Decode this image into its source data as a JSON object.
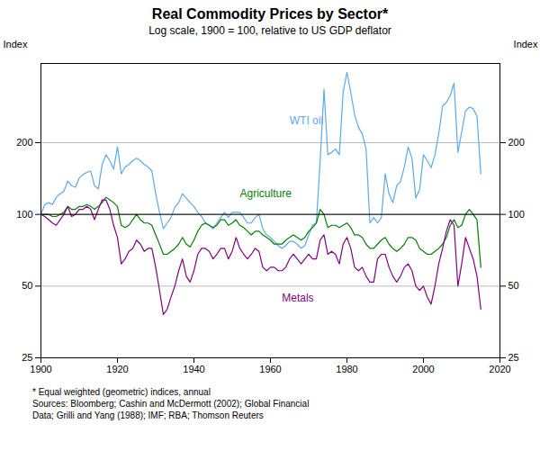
{
  "chart_data": {
    "type": "line",
    "title": "Real Commodity Prices by Sector*",
    "subtitle": "Log scale, 1900 = 100, relative to US GDP deflator",
    "ylabel": "Index",
    "y2label": "Index",
    "footnotes": [
      "*   Equal weighted (geometric) indices, annual",
      "Sources: Bloomberg; Cashin and McDermott (2002); Global Financial\nData; Grilli and Yang (1988); IMF; RBA; Thomson Reuters"
    ],
    "log": "y",
    "grid": true,
    "xlim": [
      1900,
      2020
    ],
    "xticks": [
      1900,
      1920,
      1940,
      1960,
      1980,
      2000,
      2020
    ],
    "ylim": [
      25,
      430
    ],
    "yticks": [
      25,
      50,
      100,
      200
    ],
    "y2lim": [
      25,
      430
    ],
    "y2ticks": [
      25,
      50,
      100,
      200
    ],
    "reference_line": 100,
    "x": [
      1900,
      1901,
      1902,
      1903,
      1904,
      1905,
      1906,
      1907,
      1908,
      1909,
      1910,
      1911,
      1912,
      1913,
      1914,
      1915,
      1916,
      1917,
      1918,
      1919,
      1920,
      1921,
      1922,
      1923,
      1924,
      1925,
      1926,
      1927,
      1928,
      1929,
      1930,
      1931,
      1932,
      1933,
      1934,
      1935,
      1936,
      1937,
      1938,
      1939,
      1940,
      1941,
      1942,
      1943,
      1944,
      1945,
      1946,
      1947,
      1948,
      1949,
      1950,
      1951,
      1952,
      1953,
      1954,
      1955,
      1956,
      1957,
      1958,
      1959,
      1960,
      1961,
      1962,
      1963,
      1964,
      1965,
      1966,
      1967,
      1968,
      1969,
      1970,
      1971,
      1972,
      1973,
      1974,
      1975,
      1976,
      1977,
      1978,
      1979,
      1980,
      1981,
      1982,
      1983,
      1984,
      1985,
      1986,
      1987,
      1988,
      1989,
      1990,
      1991,
      1992,
      1993,
      1994,
      1995,
      1996,
      1997,
      1998,
      1999,
      2000,
      2001,
      2002,
      2003,
      2004,
      2005,
      2006,
      2007,
      2008,
      2009,
      2010,
      2011,
      2012,
      2013,
      2014,
      2015
    ],
    "series": [
      {
        "name": "WTI oil",
        "color": "#5aabea",
        "label_position": [
          1965,
          240
        ],
        "values": [
          100,
          110,
          112,
          110,
          118,
          122,
          125,
          138,
          132,
          130,
          142,
          147,
          150,
          152,
          132,
          128,
          162,
          178,
          168,
          155,
          192,
          148,
          158,
          162,
          168,
          172,
          168,
          162,
          158,
          152,
          122,
          102,
          87,
          92,
          97,
          107,
          112,
          122,
          117,
          112,
          108,
          102,
          98,
          92,
          90,
          87,
          92,
          97,
          102,
          97,
          102,
          102,
          102,
          97,
          92,
          92,
          97,
          100,
          87,
          82,
          80,
          77,
          74,
          72,
          74,
          77,
          77,
          75,
          72,
          74,
          82,
          90,
          92,
          168,
          335,
          178,
          182,
          188,
          178,
          325,
          395,
          325,
          262,
          232,
          218,
          188,
          92,
          97,
          92,
          97,
          148,
          122,
          112,
          132,
          137,
          158,
          192,
          172,
          117,
          127,
          178,
          168,
          157,
          178,
          218,
          285,
          295,
          315,
          355,
          182,
          222,
          272,
          282,
          278,
          258,
          148
        ]
      },
      {
        "name": "Agriculture",
        "color": "#008000",
        "label_position": [
          1952,
          118
        ],
        "values": [
          100,
          100,
          100,
          98,
          98,
          100,
          102,
          108,
          105,
          105,
          108,
          108,
          110,
          108,
          105,
          108,
          112,
          118,
          115,
          112,
          108,
          90,
          88,
          90,
          95,
          100,
          95,
          92,
          92,
          90,
          82,
          75,
          68,
          68,
          70,
          72,
          75,
          80,
          75,
          73,
          78,
          85,
          90,
          92,
          90,
          88,
          90,
          95,
          95,
          90,
          92,
          95,
          90,
          88,
          85,
          82,
          85,
          85,
          82,
          80,
          78,
          75,
          75,
          75,
          78,
          80,
          82,
          80,
          78,
          80,
          85,
          88,
          92,
          105,
          100,
          88,
          90,
          90,
          88,
          90,
          92,
          88,
          82,
          82,
          80,
          75,
          72,
          72,
          75,
          78,
          80,
          75,
          72,
          70,
          72,
          75,
          80,
          80,
          78,
          72,
          70,
          68,
          68,
          70,
          72,
          75,
          80,
          90,
          95,
          88,
          90,
          100,
          105,
          100,
          95,
          60
        ]
      },
      {
        "name": "Metals",
        "color": "#800080",
        "label_position": [
          1963,
          43
        ],
        "values": [
          100,
          98,
          95,
          92,
          90,
          95,
          100,
          108,
          98,
          100,
          105,
          105,
          108,
          105,
          95,
          105,
          115,
          115,
          105,
          90,
          80,
          62,
          65,
          70,
          72,
          78,
          75,
          70,
          72,
          72,
          60,
          48,
          38,
          40,
          45,
          50,
          58,
          65,
          55,
          52,
          58,
          68,
          72,
          72,
          70,
          65,
          68,
          72,
          72,
          65,
          70,
          80,
          72,
          68,
          65,
          68,
          72,
          70,
          60,
          58,
          60,
          60,
          58,
          58,
          60,
          65,
          68,
          65,
          62,
          65,
          68,
          65,
          65,
          78,
          82,
          68,
          70,
          68,
          62,
          75,
          80,
          72,
          60,
          58,
          60,
          55,
          52,
          52,
          65,
          68,
          68,
          60,
          55,
          52,
          55,
          60,
          62,
          58,
          50,
          48,
          50,
          45,
          42,
          50,
          62,
          72,
          85,
          95,
          90,
          50,
          62,
          80,
          72,
          65,
          55,
          40
        ]
      }
    ]
  }
}
